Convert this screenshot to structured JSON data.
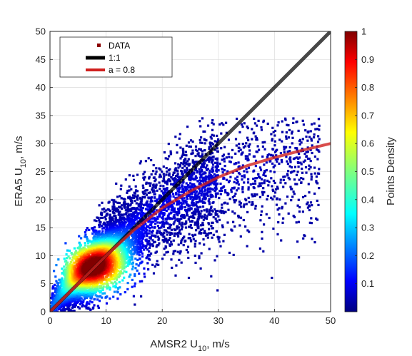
{
  "chart_data": {
    "type": "scatter",
    "title": "",
    "xlabel": {
      "main": "AMSR2 U",
      "sub": "10",
      "suffix": ", m/s"
    },
    "ylabel": {
      "main": "ERA5 U",
      "sub": "10",
      "suffix": ", m/s"
    },
    "xlim": [
      0,
      50
    ],
    "ylim": [
      0,
      50
    ],
    "xticks": [
      "0",
      "10",
      "20",
      "30",
      "40",
      "50"
    ],
    "yticks": [
      "0",
      "5",
      "10",
      "15",
      "20",
      "25",
      "30",
      "35",
      "40",
      "45",
      "50"
    ],
    "grid": true,
    "legend": {
      "placement": "top-left",
      "entries": [
        "DATA",
        "1:1",
        "a = 0.8"
      ]
    },
    "series": [
      {
        "name": "DATA",
        "kind": "density-scatter",
        "ridge": [
          [
            2,
            3
          ],
          [
            5,
            6
          ],
          [
            8,
            8.5
          ],
          [
            10,
            10.5
          ],
          [
            13,
            13
          ],
          [
            16,
            15.5
          ],
          [
            20,
            18.5
          ],
          [
            25,
            21.5
          ],
          [
            30,
            23.5
          ],
          [
            35,
            25
          ],
          [
            40,
            26.5
          ],
          [
            45,
            27.5
          ]
        ],
        "approx_range": {
          "x": [
            0,
            48
          ],
          "y": [
            0,
            34
          ]
        },
        "peak_density_at": [
          8,
          8
        ]
      },
      {
        "name": "1:1",
        "kind": "line",
        "x": [
          0,
          50
        ],
        "y": [
          0,
          50
        ],
        "color": "#000000"
      },
      {
        "name": "a = 0.8",
        "kind": "line",
        "x": [
          0,
          5,
          10,
          15,
          20,
          25,
          30,
          35,
          40,
          45,
          50
        ],
        "y": [
          0,
          5,
          10,
          14.6,
          18.5,
          21.5,
          24,
          26,
          27.5,
          28.8,
          30
        ],
        "color": "#d0201e"
      }
    ],
    "colorbar": {
      "label": "Points Density",
      "range": [
        0,
        1
      ],
      "ticks": [
        "0.1",
        "0.2",
        "0.3",
        "0.4",
        "0.5",
        "0.6",
        "0.7",
        "0.8",
        "0.9",
        "1"
      ],
      "colormap": "jet"
    }
  }
}
